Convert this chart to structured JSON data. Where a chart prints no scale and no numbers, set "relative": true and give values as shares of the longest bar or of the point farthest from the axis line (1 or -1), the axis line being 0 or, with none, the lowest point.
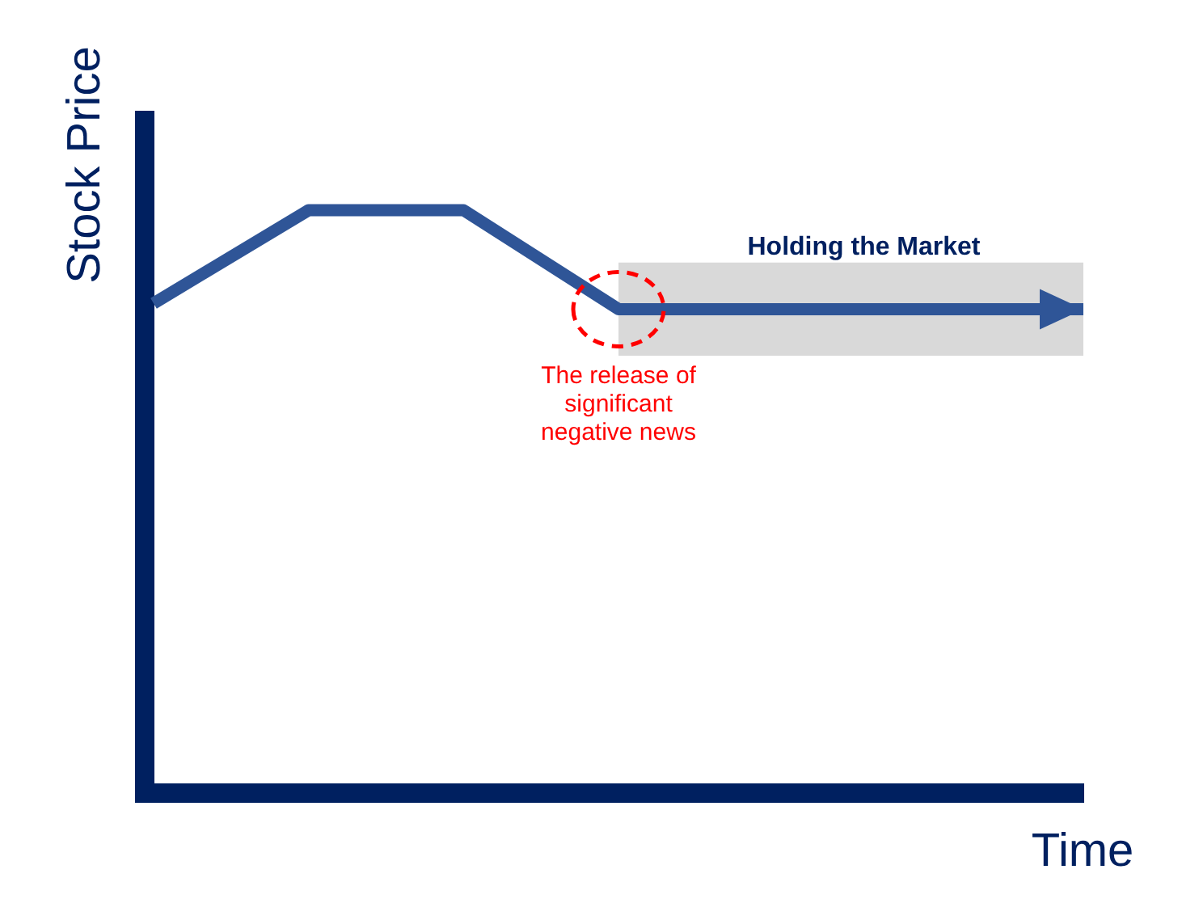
{
  "chart_data": {
    "type": "line",
    "xlabel": "Time",
    "ylabel": "Stock Price",
    "relative": true,
    "categories": [
      null,
      null,
      null,
      null,
      null,
      null,
      null
    ],
    "series": [
      {
        "color": "#2f5597",
        "values": [
          0.84,
          1,
          1,
          0.83,
          0.83,
          0.83,
          0.83
        ]
      }
    ],
    "bands": [
      {
        "axis": "y",
        "from": 0.75,
        "to": 0.91,
        "label": "Holding the Market",
        "color": "#d9d9d9"
      }
    ],
    "annotations": [
      {
        "text": "The release of significant negative news",
        "y": 0.83
      }
    ]
  }
}
